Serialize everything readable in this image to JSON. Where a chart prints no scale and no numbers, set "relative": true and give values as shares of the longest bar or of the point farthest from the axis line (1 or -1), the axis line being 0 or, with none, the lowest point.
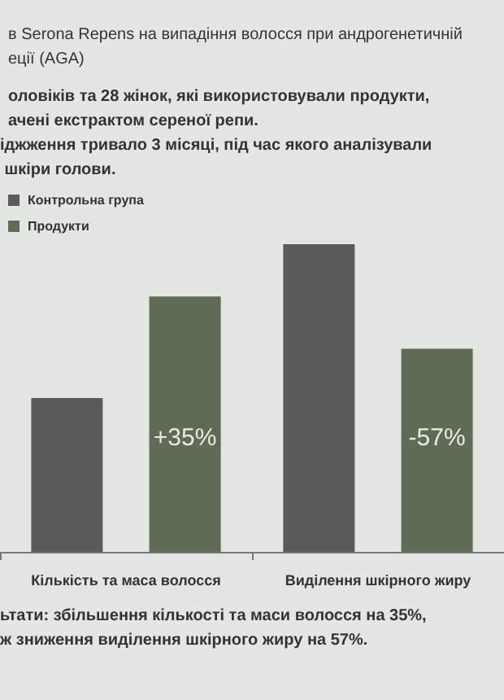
{
  "chart_data": {
    "type": "bar",
    "title": "в Serona Repens на випадіння волосся при андрогенетичній\nеції (AGA)",
    "subtitle": "оловіків та 28 жінок, які використовували продукти,\nачені екстрактом сереної репи.",
    "annotations": [
      "іджження тривало 3 місяці, під час якого аналізували\n шкіри голови.",
      "ьтати: збільшення кількості та маси волосся на 35%,\nж зниження виділення шкірного жиру на 57%.",
      "+35%",
      "-57%"
    ],
    "categories": [
      "Кількість та маса волосся",
      "Виділення шкірного жиру"
    ],
    "relative": true,
    "legend": "top left",
    "series": [
      {
        "name": "Контрольна група",
        "color": "#5a5a5a",
        "values": [
          0.5,
          1
        ]
      },
      {
        "name": "Продукти",
        "color": "#5f6b55",
        "values": [
          0.83,
          0.66
        ]
      }
    ]
  }
}
